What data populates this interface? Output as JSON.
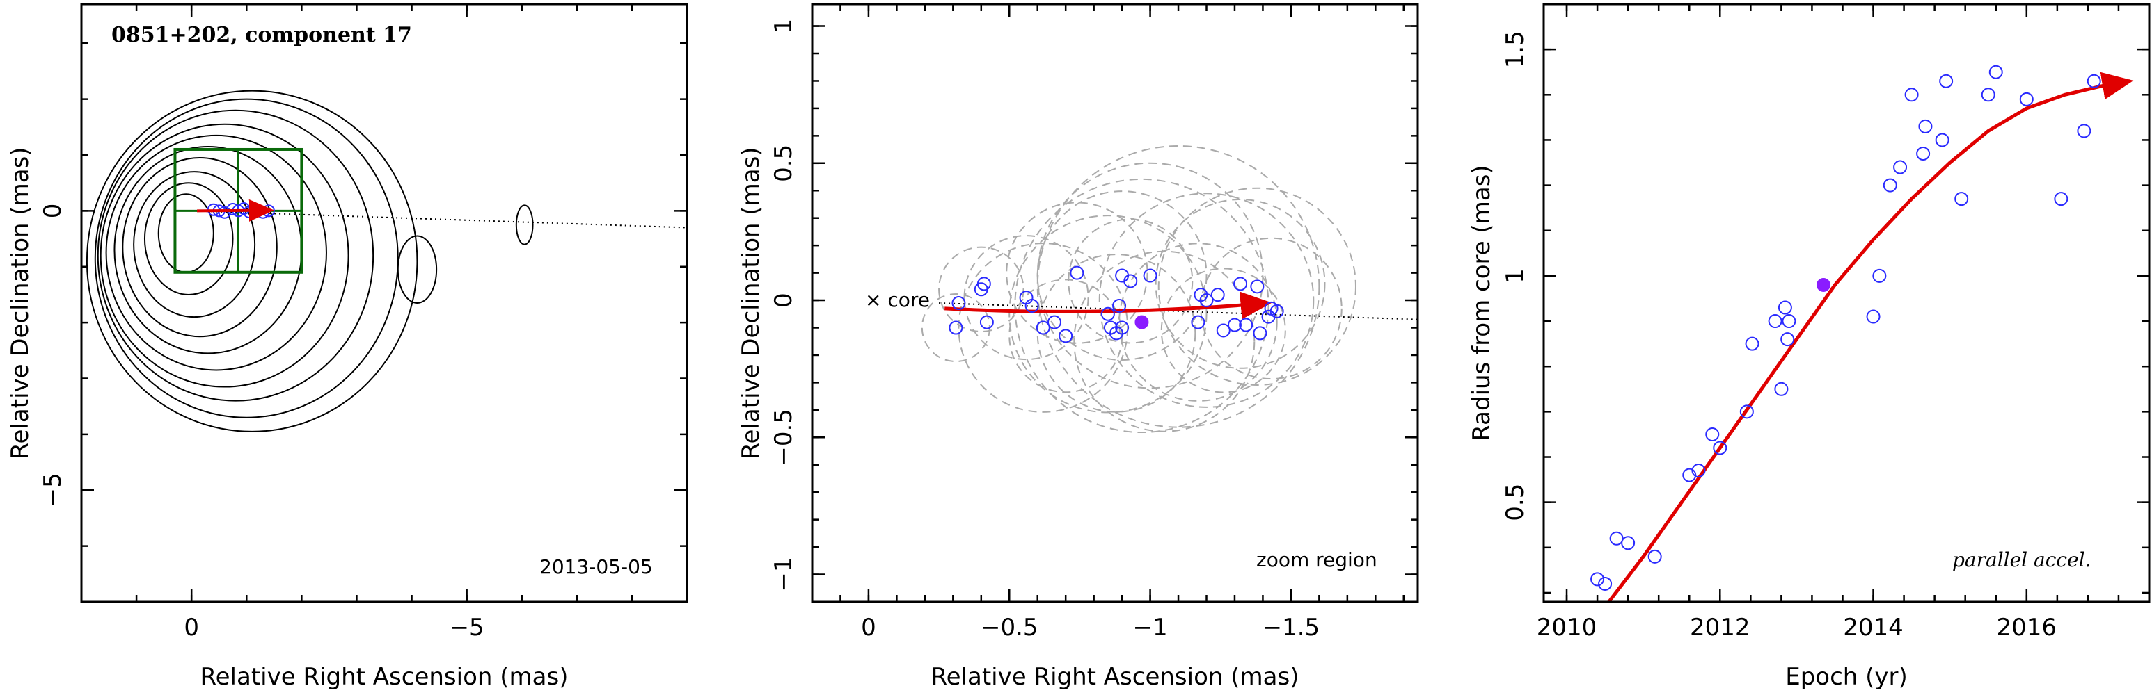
{
  "chart_data": [
    {
      "type": "scatter",
      "title": "0851+202, component 17",
      "date": "2013-05-05",
      "xlabel": "Relative Right Ascension (mas)",
      "ylabel": "Relative Declination (mas)",
      "xlim": [
        2.0,
        -9.0
      ],
      "ylim": [
        -7.0,
        3.7
      ],
      "xticks": [
        {
          "value": 0,
          "label": "0"
        },
        {
          "value": -5,
          "label": "−5"
        }
      ],
      "yticks": [
        {
          "value": 0,
          "label": "0"
        },
        {
          "value": -5,
          "label": "−5"
        }
      ],
      "contours": [
        {
          "cx": 0.1,
          "cy": -0.4,
          "rx": 0.5,
          "ry": 0.7
        },
        {
          "cx": 0.05,
          "cy": -0.5,
          "rx": 0.8,
          "ry": 1.0
        },
        {
          "cx": -0.05,
          "cy": -0.6,
          "rx": 1.1,
          "ry": 1.3
        },
        {
          "cx": -0.15,
          "cy": -0.65,
          "rx": 1.4,
          "ry": 1.6
        },
        {
          "cx": -0.3,
          "cy": -0.7,
          "rx": 1.7,
          "ry": 1.85
        },
        {
          "cx": -0.45,
          "cy": -0.75,
          "rx": 2.0,
          "ry": 2.1
        },
        {
          "cx": -0.6,
          "cy": -0.8,
          "rx": 2.25,
          "ry": 2.35
        },
        {
          "cx": -0.8,
          "cy": -0.8,
          "rx": 2.5,
          "ry": 2.6
        },
        {
          "cx": -1.0,
          "cy": -0.85,
          "rx": 2.75,
          "ry": 2.85
        },
        {
          "cx": -1.1,
          "cy": -0.9,
          "rx": 3.0,
          "ry": 3.05
        },
        {
          "cx": -4.1,
          "cy": -1.05,
          "rx": 0.35,
          "ry": 0.6
        },
        {
          "cx": -6.05,
          "cy": -0.25,
          "rx": 0.15,
          "ry": 0.35
        }
      ],
      "zoom_box": {
        "x": [
          0.3,
          -2.0
        ],
        "y": [
          -1.1,
          1.1
        ]
      },
      "jet_axis": {
        "x": [
          0,
          -9.0
        ],
        "y": [
          0,
          -0.3
        ]
      },
      "points": [
        {
          "x": -0.4,
          "y": 0.02
        },
        {
          "x": -0.5,
          "y": 0.0
        },
        {
          "x": -0.6,
          "y": -0.03
        },
        {
          "x": -0.75,
          "y": 0.03
        },
        {
          "x": -0.85,
          "y": 0.0
        },
        {
          "x": -0.95,
          "y": 0.04
        },
        {
          "x": -1.05,
          "y": -0.02
        },
        {
          "x": -1.2,
          "y": 0.01
        },
        {
          "x": -1.3,
          "y": -0.03
        },
        {
          "x": -1.4,
          "y": 0.0
        }
      ],
      "track": {
        "x": [
          -0.1,
          -1.45
        ],
        "y": [
          0.0,
          0.01
        ]
      }
    },
    {
      "type": "scatter",
      "xlabel": "Relative Right Ascension (mas)",
      "ylabel": "Relative Declination (mas)",
      "annotation": "zoom region",
      "core_label": "core",
      "xlim": [
        0.2,
        -1.95
      ],
      "ylim": [
        -1.1,
        1.08
      ],
      "xticks": [
        {
          "value": 0,
          "label": "0"
        },
        {
          "value": -0.5,
          "label": "−0.5"
        },
        {
          "value": -1,
          "label": "−1"
        },
        {
          "value": -1.5,
          "label": "−1.5"
        }
      ],
      "yticks": [
        {
          "value": -1,
          "label": "−1"
        },
        {
          "value": -0.5,
          "label": "−0.5"
        },
        {
          "value": 0,
          "label": "0"
        },
        {
          "value": 0.5,
          "label": "0.5"
        },
        {
          "value": 1,
          "label": "1"
        }
      ],
      "jet_axis": {
        "x": [
          -0.25,
          -1.95
        ],
        "y": [
          -0.01,
          -0.07
        ]
      },
      "points": [
        {
          "x": -0.31,
          "y": -0.1
        },
        {
          "x": -0.32,
          "y": -0.01
        },
        {
          "x": -0.4,
          "y": 0.04
        },
        {
          "x": -0.41,
          "y": 0.06
        },
        {
          "x": -0.42,
          "y": -0.08
        },
        {
          "x": -0.56,
          "y": 0.01
        },
        {
          "x": -0.58,
          "y": -0.02
        },
        {
          "x": -0.62,
          "y": -0.1
        },
        {
          "x": -0.66,
          "y": -0.08
        },
        {
          "x": -0.7,
          "y": -0.13
        },
        {
          "x": -0.74,
          "y": 0.1
        },
        {
          "x": -0.85,
          "y": -0.05
        },
        {
          "x": -0.86,
          "y": -0.1
        },
        {
          "x": -0.88,
          "y": -0.12
        },
        {
          "x": -0.89,
          "y": -0.02
        },
        {
          "x": -0.9,
          "y": -0.1
        },
        {
          "x": -0.9,
          "y": 0.09
        },
        {
          "x": -0.93,
          "y": 0.07
        },
        {
          "x": -1.0,
          "y": 0.09
        },
        {
          "x": -1.17,
          "y": -0.08
        },
        {
          "x": -1.18,
          "y": 0.02
        },
        {
          "x": -1.2,
          "y": 0.0
        },
        {
          "x": -1.24,
          "y": 0.02
        },
        {
          "x": -1.26,
          "y": -0.11
        },
        {
          "x": -1.3,
          "y": -0.09
        },
        {
          "x": -1.32,
          "y": 0.06
        },
        {
          "x": -1.34,
          "y": -0.09
        },
        {
          "x": -1.38,
          "y": 0.05
        },
        {
          "x": -1.39,
          "y": -0.12
        },
        {
          "x": -1.42,
          "y": -0.06
        },
        {
          "x": -1.43,
          "y": -0.03
        },
        {
          "x": -1.45,
          "y": -0.04
        }
      ],
      "highlight": {
        "x": -0.97,
        "y": -0.08
      },
      "track": {
        "x": [
          -0.27,
          -1.42
        ],
        "y": [
          -0.03,
          -0.01
        ]
      },
      "error_circles": [
        {
          "x": -0.31,
          "y": -0.1,
          "r": 0.12
        },
        {
          "x": -0.4,
          "y": 0.04,
          "r": 0.15
        },
        {
          "x": -0.56,
          "y": 0.01,
          "r": 0.22
        },
        {
          "x": -0.62,
          "y": -0.1,
          "r": 0.3
        },
        {
          "x": -0.7,
          "y": -0.13,
          "r": 0.2
        },
        {
          "x": -0.74,
          "y": 0.1,
          "r": 0.25
        },
        {
          "x": -0.85,
          "y": -0.05,
          "r": 0.35
        },
        {
          "x": -0.88,
          "y": -0.12,
          "r": 0.28
        },
        {
          "x": -0.9,
          "y": 0.09,
          "r": 0.3
        },
        {
          "x": -0.93,
          "y": 0.07,
          "r": 0.22
        },
        {
          "x": -1.0,
          "y": 0.09,
          "r": 0.4
        },
        {
          "x": -1.05,
          "y": -0.15,
          "r": 0.32
        },
        {
          "x": -1.17,
          "y": -0.08,
          "r": 0.28
        },
        {
          "x": -1.2,
          "y": 0.0,
          "r": 0.38
        },
        {
          "x": -1.26,
          "y": -0.11,
          "r": 0.22
        },
        {
          "x": -1.32,
          "y": 0.06,
          "r": 0.3
        },
        {
          "x": -1.38,
          "y": 0.05,
          "r": 0.35
        },
        {
          "x": -1.43,
          "y": -0.03,
          "r": 0.25
        },
        {
          "x": -0.97,
          "y": -0.02,
          "r": 0.45
        },
        {
          "x": -1.1,
          "y": 0.05,
          "r": 0.5
        }
      ]
    },
    {
      "type": "scatter",
      "xlabel": "Epoch (yr)",
      "ylabel": "Radius from core (mas)",
      "annotation": "parallel accel.",
      "xlim": [
        2009.7,
        2017.6
      ],
      "ylim": [
        0.28,
        1.6
      ],
      "xticks": [
        {
          "value": 2010,
          "label": "2010"
        },
        {
          "value": 2012,
          "label": "2012"
        },
        {
          "value": 2014,
          "label": "2014"
        },
        {
          "value": 2016,
          "label": "2016"
        }
      ],
      "yticks": [
        {
          "value": 0.5,
          "label": "0.5"
        },
        {
          "value": 1.0,
          "label": "1"
        },
        {
          "value": 1.5,
          "label": "1.5"
        }
      ],
      "points": [
        {
          "x": 2010.4,
          "y": 0.33
        },
        {
          "x": 2010.5,
          "y": 0.32
        },
        {
          "x": 2010.65,
          "y": 0.42
        },
        {
          "x": 2010.8,
          "y": 0.41
        },
        {
          "x": 2011.15,
          "y": 0.38
        },
        {
          "x": 2011.6,
          "y": 0.56
        },
        {
          "x": 2011.72,
          "y": 0.57
        },
        {
          "x": 2011.9,
          "y": 0.65
        },
        {
          "x": 2012.0,
          "y": 0.62
        },
        {
          "x": 2012.35,
          "y": 0.7
        },
        {
          "x": 2012.42,
          "y": 0.85
        },
        {
          "x": 2012.72,
          "y": 0.9
        },
        {
          "x": 2012.8,
          "y": 0.75
        },
        {
          "x": 2012.85,
          "y": 0.93
        },
        {
          "x": 2012.88,
          "y": 0.86
        },
        {
          "x": 2012.9,
          "y": 0.9
        },
        {
          "x": 2014.0,
          "y": 0.91
        },
        {
          "x": 2014.08,
          "y": 1.0
        },
        {
          "x": 2014.22,
          "y": 1.2
        },
        {
          "x": 2014.35,
          "y": 1.24
        },
        {
          "x": 2014.5,
          "y": 1.4
        },
        {
          "x": 2014.65,
          "y": 1.27
        },
        {
          "x": 2014.68,
          "y": 1.33
        },
        {
          "x": 2014.9,
          "y": 1.3
        },
        {
          "x": 2014.95,
          "y": 1.43
        },
        {
          "x": 2015.15,
          "y": 1.17
        },
        {
          "x": 2015.5,
          "y": 1.4
        },
        {
          "x": 2015.6,
          "y": 1.45
        },
        {
          "x": 2016.0,
          "y": 1.39
        },
        {
          "x": 2016.45,
          "y": 1.17
        },
        {
          "x": 2016.75,
          "y": 1.32
        },
        {
          "x": 2016.88,
          "y": 1.43
        }
      ],
      "highlight": {
        "x": 2013.35,
        "y": 0.98
      },
      "fit_curve": {
        "x": [
          2010.55,
          2011.0,
          2011.5,
          2012.0,
          2012.5,
          2013.0,
          2013.5,
          2014.0,
          2014.5,
          2015.0,
          2015.5,
          2016.0,
          2016.5,
          2017.0,
          2017.35
        ],
        "y": [
          0.28,
          0.38,
          0.5,
          0.62,
          0.74,
          0.86,
          0.98,
          1.08,
          1.17,
          1.25,
          1.32,
          1.37,
          1.4,
          1.42,
          1.43
        ]
      }
    }
  ]
}
